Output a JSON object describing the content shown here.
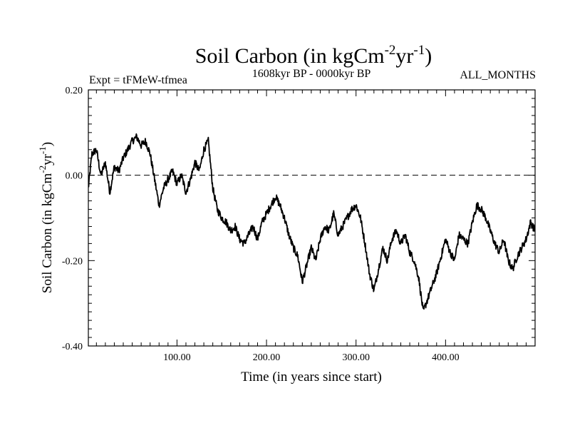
{
  "chart_data": {
    "type": "line",
    "title": "Soil Carbon (in kgCm",
    "title_exp1": "-2",
    "title_mid": "yr",
    "title_exp2": "-1",
    "title_end": ")",
    "subtitle_left": "Expt = tFMeW-tfmea",
    "subtitle_center": "1608kyr BP - 0000kyr BP",
    "subtitle_right": "ALL_MONTHS",
    "xlabel": "Time (in years since start)",
    "ylabel_main": "Soil Carbon (in kgCm",
    "ylabel_exp1": "-2",
    "ylabel_mid": "yr",
    "ylabel_exp2": "-1",
    "ylabel_end": ")",
    "xlim": [
      1,
      500
    ],
    "ylim": [
      -0.4,
      0.2
    ],
    "xticks": [
      100,
      200,
      300,
      400
    ],
    "xtick_labels": [
      "100.00",
      "200.00",
      "300.00",
      "400.00"
    ],
    "yticks": [
      0.2,
      0.0,
      -0.2,
      -0.4
    ],
    "ytick_labels": [
      "0.20",
      "0.00",
      "-0.20",
      "-0.40"
    ],
    "reference_line": 0.0,
    "series": [
      {
        "name": "Soil Carbon",
        "x": [
          1,
          5,
          10,
          15,
          20,
          25,
          30,
          35,
          40,
          45,
          50,
          55,
          60,
          65,
          70,
          75,
          80,
          85,
          90,
          95,
          100,
          105,
          110,
          115,
          120,
          125,
          130,
          135,
          140,
          145,
          150,
          155,
          160,
          165,
          170,
          175,
          180,
          185,
          190,
          195,
          200,
          205,
          210,
          215,
          220,
          225,
          230,
          235,
          240,
          245,
          250,
          255,
          260,
          265,
          270,
          275,
          280,
          285,
          290,
          295,
          300,
          305,
          310,
          315,
          320,
          325,
          330,
          335,
          340,
          345,
          350,
          355,
          360,
          365,
          370,
          375,
          380,
          385,
          390,
          395,
          400,
          405,
          410,
          415,
          420,
          425,
          430,
          435,
          440,
          445,
          450,
          455,
          460,
          465,
          470,
          475,
          480,
          485,
          490,
          495,
          500
        ],
        "values": [
          -0.03,
          0.05,
          0.06,
          0.0,
          0.03,
          -0.04,
          0.02,
          0.01,
          0.04,
          0.06,
          0.08,
          0.09,
          0.07,
          0.08,
          0.05,
          -0.01,
          -0.07,
          -0.03,
          -0.01,
          0.01,
          -0.02,
          0.0,
          -0.04,
          -0.01,
          0.03,
          0.01,
          0.06,
          0.08,
          -0.03,
          -0.08,
          -0.1,
          -0.11,
          -0.13,
          -0.12,
          -0.15,
          -0.16,
          -0.14,
          -0.12,
          -0.15,
          -0.11,
          -0.09,
          -0.07,
          -0.05,
          -0.07,
          -0.1,
          -0.14,
          -0.17,
          -0.19,
          -0.25,
          -0.21,
          -0.17,
          -0.2,
          -0.15,
          -0.12,
          -0.13,
          -0.09,
          -0.14,
          -0.12,
          -0.1,
          -0.08,
          -0.07,
          -0.1,
          -0.16,
          -0.23,
          -0.27,
          -0.22,
          -0.17,
          -0.2,
          -0.15,
          -0.13,
          -0.16,
          -0.14,
          -0.18,
          -0.2,
          -0.24,
          -0.32,
          -0.29,
          -0.26,
          -0.23,
          -0.19,
          -0.15,
          -0.18,
          -0.2,
          -0.14,
          -0.15,
          -0.16,
          -0.11,
          -0.07,
          -0.08,
          -0.1,
          -0.13,
          -0.16,
          -0.18,
          -0.15,
          -0.2,
          -0.22,
          -0.19,
          -0.17,
          -0.15,
          -0.11,
          -0.13
        ]
      }
    ]
  }
}
